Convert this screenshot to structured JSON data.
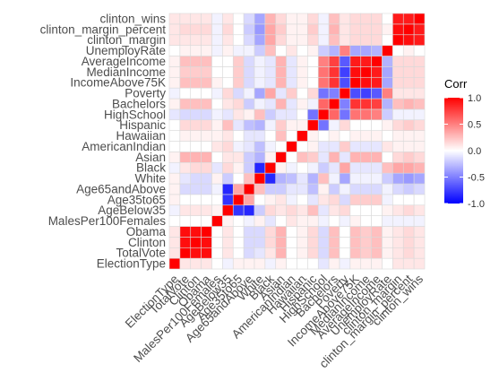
{
  "chart_data": {
    "type": "heatmap",
    "title": "",
    "xlabel": "",
    "ylabel": "",
    "variables": [
      "ElectionType",
      "TotalVote",
      "Clinton",
      "Obama",
      "MalesPer100Females",
      "AgeBelow35",
      "Age35to65",
      "Age65andAbove",
      "White",
      "Black",
      "Asian",
      "AmericanIndian",
      "Hawaiian",
      "Hispanic",
      "HighSchool",
      "Bachelors",
      "Poverty",
      "IncomeAbove75K",
      "MedianIncome",
      "AverageIncome",
      "UnemployRate",
      "clinton_margin",
      "clinton_margin_percent",
      "clinton_wins"
    ],
    "values": [
      [
        1.0,
        0.1,
        0.1,
        0.1,
        0.0,
        -0.05,
        0.05,
        0.05,
        0.05,
        -0.05,
        0.05,
        0.0,
        0.0,
        0.0,
        -0.1,
        0.05,
        -0.05,
        0.05,
        0.05,
        0.05,
        0.0,
        0.1,
        0.1,
        0.1
      ],
      [
        0.1,
        1.0,
        0.95,
        0.95,
        0.0,
        0.1,
        0.0,
        -0.15,
        -0.1,
        0.1,
        0.3,
        0.0,
        0.05,
        0.15,
        -0.15,
        0.25,
        0.0,
        0.25,
        0.2,
        0.25,
        0.05,
        0.1,
        0.15,
        0.1
      ],
      [
        0.1,
        0.95,
        1.0,
        0.95,
        0.0,
        0.1,
        0.0,
        -0.15,
        -0.15,
        0.15,
        0.3,
        0.0,
        0.05,
        0.15,
        -0.15,
        0.25,
        0.0,
        0.25,
        0.2,
        0.25,
        0.05,
        0.1,
        0.15,
        0.1
      ],
      [
        0.1,
        0.95,
        0.95,
        1.0,
        0.0,
        0.1,
        0.0,
        -0.15,
        -0.15,
        0.15,
        0.3,
        0.0,
        0.05,
        0.15,
        -0.15,
        0.25,
        0.0,
        0.25,
        0.2,
        0.25,
        0.05,
        0.1,
        0.15,
        0.1
      ],
      [
        0.0,
        0.0,
        0.0,
        0.0,
        1.0,
        0.05,
        0.0,
        -0.05,
        0.05,
        -0.1,
        0.0,
        0.1,
        0.05,
        0.05,
        -0.05,
        0.0,
        -0.05,
        0.05,
        0.0,
        0.0,
        -0.05,
        -0.05,
        -0.05,
        -0.05
      ],
      [
        -0.05,
        0.1,
        0.1,
        0.1,
        0.05,
        1.0,
        -0.8,
        -0.85,
        -0.2,
        0.15,
        0.1,
        0.15,
        0.1,
        0.25,
        -0.1,
        0.1,
        0.15,
        0.0,
        0.0,
        0.0,
        0.05,
        0.1,
        0.15,
        0.1
      ],
      [
        0.05,
        0.0,
        0.0,
        0.0,
        0.0,
        -0.8,
        1.0,
        0.35,
        0.0,
        0.05,
        0.1,
        -0.05,
        0.0,
        -0.1,
        0.1,
        0.15,
        -0.15,
        0.2,
        0.2,
        0.2,
        -0.05,
        0.0,
        0.0,
        0.0
      ],
      [
        0.05,
        -0.15,
        -0.15,
        -0.15,
        -0.05,
        -0.85,
        0.35,
        1.0,
        0.25,
        -0.2,
        -0.2,
        -0.1,
        -0.1,
        -0.25,
        0.05,
        -0.2,
        -0.05,
        -0.15,
        -0.15,
        -0.15,
        -0.05,
        -0.15,
        -0.2,
        -0.15
      ],
      [
        0.05,
        -0.1,
        -0.15,
        -0.15,
        0.05,
        -0.2,
        0.0,
        0.25,
        1.0,
        -0.85,
        -0.3,
        -0.25,
        -0.1,
        -0.3,
        0.25,
        -0.05,
        -0.35,
        -0.05,
        -0.05,
        -0.05,
        -0.2,
        -0.35,
        -0.4,
        -0.35
      ],
      [
        -0.05,
        0.1,
        0.15,
        0.15,
        -0.1,
        0.15,
        0.05,
        -0.2,
        -0.85,
        1.0,
        0.05,
        -0.05,
        0.0,
        -0.05,
        -0.2,
        -0.1,
        0.35,
        -0.1,
        -0.1,
        -0.1,
        0.25,
        0.35,
        0.35,
        0.3
      ],
      [
        0.05,
        0.3,
        0.3,
        0.3,
        0.0,
        0.1,
        0.1,
        -0.2,
        -0.3,
        0.05,
        1.0,
        0.0,
        0.25,
        0.2,
        -0.1,
        0.3,
        -0.1,
        0.3,
        0.3,
        0.3,
        0.0,
        0.15,
        0.2,
        0.15
      ],
      [
        0.0,
        0.0,
        0.0,
        0.0,
        0.1,
        0.15,
        -0.05,
        -0.1,
        -0.25,
        -0.05,
        0.0,
        1.0,
        0.0,
        0.05,
        -0.1,
        -0.1,
        0.2,
        -0.1,
        -0.1,
        -0.1,
        0.1,
        0.05,
        0.05,
        0.05
      ],
      [
        0.0,
        0.05,
        0.05,
        0.05,
        0.05,
        0.1,
        0.0,
        -0.1,
        -0.1,
        0.0,
        0.25,
        0.0,
        1.0,
        0.05,
        0.0,
        0.05,
        0.0,
        0.05,
        0.05,
        0.05,
        0.0,
        0.05,
        0.05,
        0.05
      ],
      [
        0.0,
        0.15,
        0.15,
        0.15,
        0.05,
        0.25,
        -0.1,
        -0.25,
        -0.3,
        -0.05,
        0.2,
        0.05,
        0.05,
        1.0,
        -0.55,
        -0.05,
        0.15,
        0.0,
        0.0,
        0.0,
        0.05,
        0.15,
        0.2,
        0.15
      ],
      [
        -0.1,
        -0.15,
        -0.15,
        -0.15,
        -0.05,
        -0.1,
        0.1,
        0.05,
        0.25,
        -0.2,
        -0.1,
        -0.1,
        0.0,
        -0.55,
        1.0,
        0.6,
        -0.55,
        0.55,
        0.55,
        0.5,
        -0.2,
        -0.05,
        -0.05,
        -0.05
      ],
      [
        0.05,
        0.25,
        0.25,
        0.25,
        0.0,
        0.1,
        0.15,
        -0.2,
        -0.05,
        -0.1,
        0.3,
        -0.1,
        0.05,
        -0.05,
        0.6,
        1.0,
        -0.5,
        0.8,
        0.8,
        0.75,
        -0.3,
        0.25,
        0.3,
        0.25
      ],
      [
        -0.05,
        0.0,
        0.0,
        0.0,
        -0.05,
        0.15,
        -0.15,
        -0.05,
        -0.35,
        0.35,
        -0.1,
        0.2,
        0.0,
        0.15,
        -0.55,
        -0.5,
        1.0,
        -0.7,
        -0.75,
        -0.65,
        0.5,
        0.1,
        0.1,
        0.1
      ],
      [
        0.05,
        0.25,
        0.25,
        0.25,
        0.05,
        0.0,
        0.2,
        -0.15,
        -0.05,
        -0.1,
        0.3,
        -0.1,
        0.05,
        0.0,
        0.55,
        0.8,
        -0.7,
        1.0,
        0.95,
        0.9,
        -0.35,
        0.15,
        0.15,
        0.15
      ],
      [
        0.05,
        0.2,
        0.2,
        0.2,
        0.0,
        0.0,
        0.2,
        -0.15,
        -0.05,
        -0.1,
        0.3,
        -0.1,
        0.05,
        0.0,
        0.55,
        0.8,
        -0.75,
        0.95,
        1.0,
        0.9,
        -0.35,
        0.15,
        0.15,
        0.15
      ],
      [
        0.05,
        0.25,
        0.25,
        0.25,
        0.0,
        0.0,
        0.2,
        -0.15,
        -0.05,
        -0.1,
        0.3,
        -0.1,
        0.05,
        0.0,
        0.5,
        0.75,
        -0.65,
        0.9,
        0.9,
        1.0,
        -0.3,
        0.15,
        0.15,
        0.15
      ],
      [
        0.0,
        0.05,
        0.05,
        0.05,
        -0.05,
        0.05,
        -0.05,
        -0.05,
        -0.2,
        0.25,
        0.0,
        0.1,
        0.0,
        0.05,
        -0.2,
        -0.3,
        0.5,
        -0.35,
        -0.35,
        -0.3,
        1.0,
        0.0,
        0.05,
        0.0
      ],
      [
        0.1,
        0.1,
        0.1,
        0.1,
        -0.05,
        0.1,
        0.0,
        -0.15,
        -0.35,
        0.35,
        0.15,
        0.05,
        0.05,
        0.15,
        -0.05,
        0.25,
        0.1,
        0.15,
        0.15,
        0.15,
        0.0,
        1.0,
        0.95,
        0.9
      ],
      [
        0.1,
        0.15,
        0.15,
        0.15,
        -0.05,
        0.15,
        0.0,
        -0.2,
        -0.4,
        0.35,
        0.2,
        0.05,
        0.05,
        0.2,
        -0.05,
        0.3,
        0.1,
        0.15,
        0.15,
        0.15,
        0.05,
        0.95,
        1.0,
        0.9
      ],
      [
        0.1,
        0.1,
        0.1,
        0.1,
        -0.05,
        0.1,
        0.0,
        -0.15,
        -0.35,
        0.3,
        0.15,
        0.05,
        0.05,
        0.15,
        -0.05,
        0.25,
        0.1,
        0.15,
        0.15,
        0.15,
        0.0,
        0.9,
        0.9,
        1.0
      ]
    ],
    "legend": {
      "title": "Corr",
      "ticks": [
        "1.0",
        "0.5",
        "0.0",
        "-0.5",
        "-1.0"
      ],
      "placement": "right",
      "range": [
        -1,
        1
      ]
    },
    "colors": {
      "low": "#0000ff",
      "mid": "#ffffff",
      "high": "#ff0000",
      "grid": "#d9d9d9"
    }
  }
}
